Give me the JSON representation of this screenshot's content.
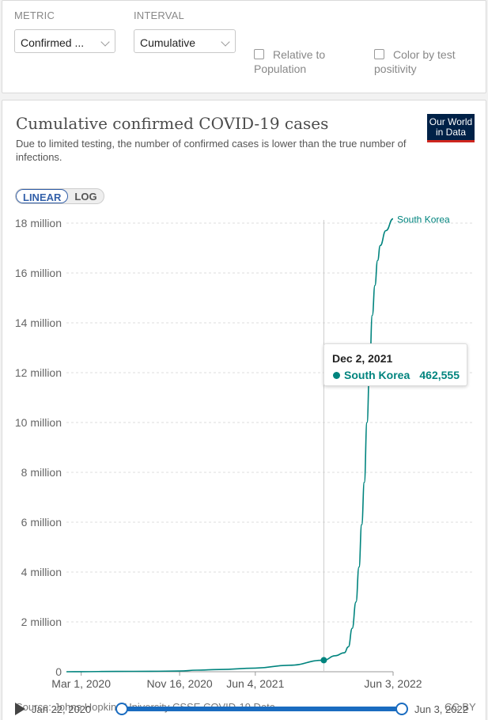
{
  "controls": {
    "metric_label": "METRIC",
    "metric_value": "Confirmed ...",
    "interval_label": "INTERVAL",
    "interval_value": "Cumulative",
    "relative_label": "Relative to Population",
    "color_label": "Color by test positivity"
  },
  "header": {
    "title": "Cumulative confirmed COVID-19 cases",
    "subtitle": "Due to limited testing, the number of confirmed cases is lower than the true number of\ninfections.",
    "logo_line1": "Our World",
    "logo_line2": "in Data"
  },
  "scale": {
    "linear": "LINEAR",
    "log": "LOG"
  },
  "tooltip": {
    "date": "Dec 2, 2021",
    "series": "South Korea",
    "value": "462,555"
  },
  "footer": {
    "source": "Source: Johns Hopkins University CSSE COVID-19 Data",
    "license": "CC BY",
    "timeline_start": "Jan 22, 2020",
    "timeline_end": "Jun 3, 2022"
  },
  "colors": {
    "series": "#00847e",
    "accent": "#1a6cc0"
  },
  "chart_data": {
    "type": "line",
    "title": "Cumulative confirmed COVID-19 cases",
    "xlabel": "",
    "ylabel": "",
    "x_ticks": [
      "Mar 1, 2020",
      "Nov 16, 2020",
      "Jun 4, 2021",
      "Jun 3, 2022"
    ],
    "y_ticks": [
      "0",
      "2 million",
      "4 million",
      "6 million",
      "8 million",
      "10 million",
      "12 million",
      "14 million",
      "16 million",
      "18 million"
    ],
    "ylim": [
      0,
      18000000
    ],
    "xlim": [
      "2020-01-22",
      "2022-06-03"
    ],
    "grid": true,
    "series": [
      {
        "name": "South Korea",
        "x": [
          "2020-01-22",
          "2020-03-01",
          "2020-06-01",
          "2020-09-01",
          "2020-11-16",
          "2021-01-01",
          "2021-03-01",
          "2021-06-04",
          "2021-09-01",
          "2021-12-02",
          "2022-01-01",
          "2022-01-25",
          "2022-02-05",
          "2022-02-15",
          "2022-02-25",
          "2022-03-05",
          "2022-03-12",
          "2022-03-19",
          "2022-03-26",
          "2022-04-02",
          "2022-04-09",
          "2022-04-16",
          "2022-04-23",
          "2022-04-30",
          "2022-05-15",
          "2022-06-03"
        ],
        "values": [
          1,
          3700,
          11500,
          20200,
          29300,
          62000,
          90000,
          145000,
          260000,
          462555,
          640000,
          760000,
          1000000,
          1740000,
          2800000,
          4200000,
          5900000,
          7600000,
          10000000,
          12200000,
          14300000,
          15500000,
          16500000,
          17100000,
          17700000,
          18170000
        ]
      }
    ],
    "hover": {
      "x": "2021-12-02",
      "series": "South Korea",
      "value": 462555
    }
  }
}
